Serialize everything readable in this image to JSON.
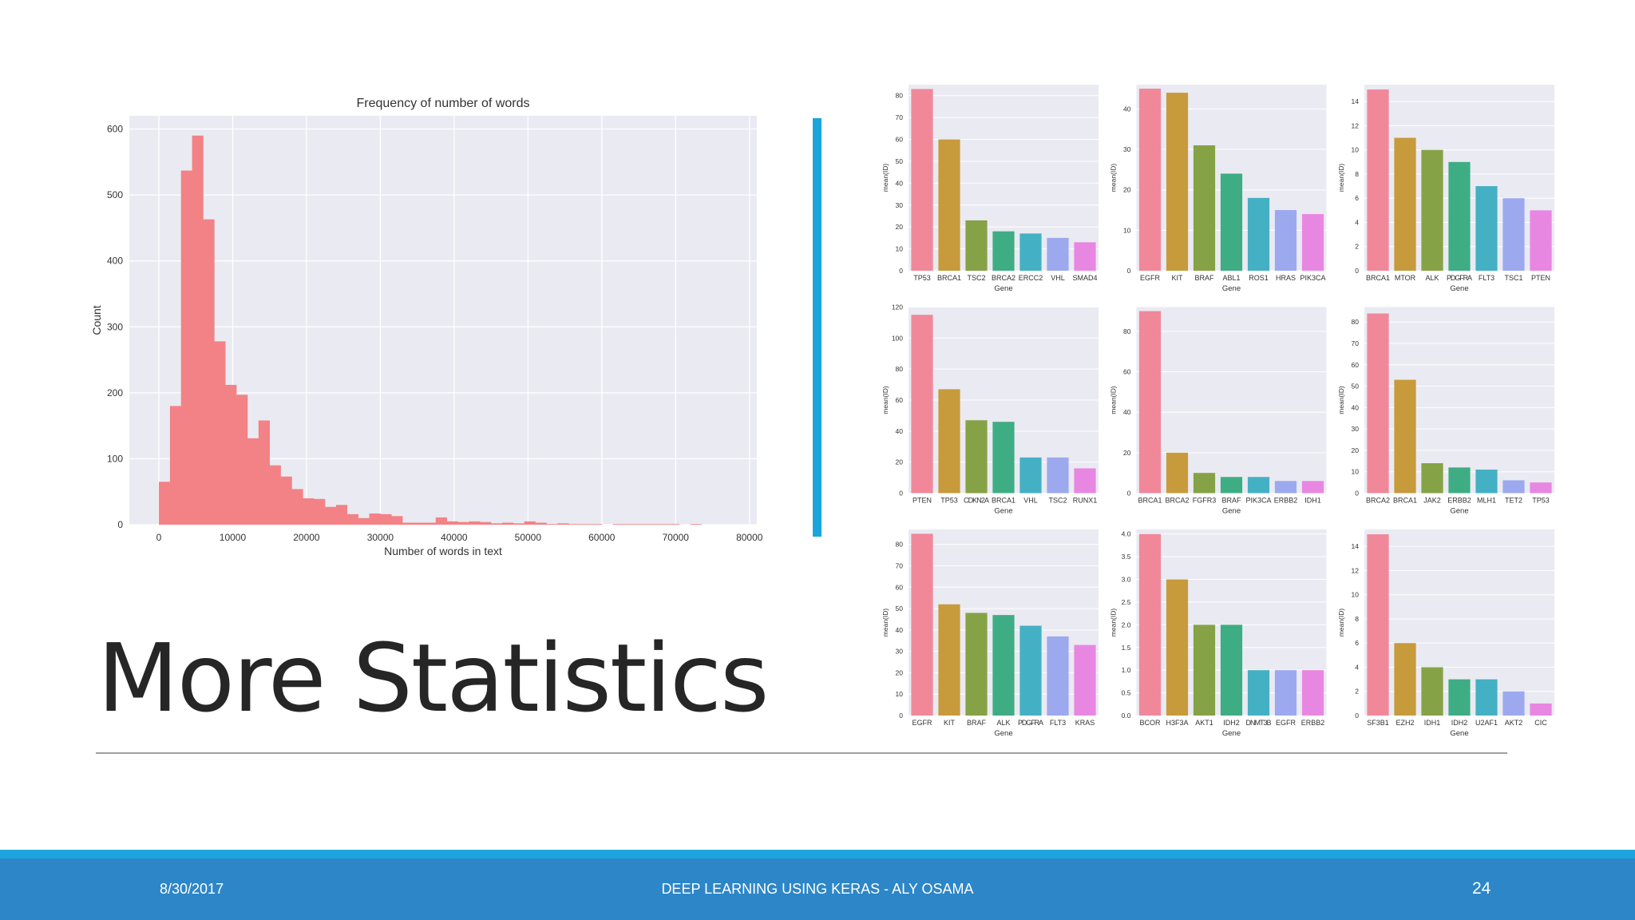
{
  "slide": {
    "title": "More Statistics",
    "footer": {
      "date": "8/30/2017",
      "center_text": "DEEP LEARNING USING KERAS - ALY OSAMA",
      "page_number": "24"
    }
  },
  "colors": {
    "accent": "#1aa6dc",
    "footer_bg": "#2c86c7",
    "hist_bar": "#f28286",
    "plot_bg": "#eaeaf2",
    "bar_palette": [
      "#f0889a",
      "#c79a3c",
      "#86a246",
      "#3fad84",
      "#44b0c4",
      "#9da9ee",
      "#e887e2"
    ]
  },
  "chart_data": [
    {
      "type": "bar",
      "chart": "histogram",
      "title": "Frequency of number of words",
      "xlabel": "Number of words in text",
      "ylabel": "Count",
      "xlim": [
        -4000,
        81000
      ],
      "ylim": [
        0,
        620
      ],
      "x_ticks": [
        "0",
        "10000",
        "20000",
        "30000",
        "40000",
        "50000",
        "60000",
        "70000",
        "80000"
      ],
      "y_ticks": [
        "0",
        "100",
        "200",
        "300",
        "400",
        "500",
        "600"
      ],
      "grid": true,
      "bin_width": 1500,
      "bin_start": 0,
      "counts": [
        65,
        180,
        537,
        590,
        463,
        278,
        212,
        197,
        131,
        158,
        90,
        73,
        54,
        40,
        39,
        27,
        30,
        16,
        10,
        17,
        16,
        13,
        3,
        3,
        3,
        11,
        5,
        4,
        5,
        4,
        2,
        3,
        2,
        5,
        3,
        1,
        2,
        1,
        1,
        1,
        0,
        1,
        1,
        1,
        1,
        1,
        1,
        0,
        1,
        0,
        0,
        0
      ]
    },
    {
      "type": "bar",
      "xlabel": "Gene",
      "ylabel": "mean(ID)",
      "ylim": [
        0,
        85
      ],
      "y_ticks": [
        0,
        10,
        20,
        30,
        40,
        50,
        60,
        70,
        80
      ],
      "categories": [
        "TP53",
        "BRCA1",
        "TSC2",
        "BRCA2",
        "ERCC2",
        "VHL",
        "SMAD4"
      ],
      "values": [
        83,
        60,
        23,
        18,
        17,
        15,
        13
      ]
    },
    {
      "type": "bar",
      "xlabel": "Gene",
      "ylabel": "mean(ID)",
      "ylim": [
        0,
        46
      ],
      "y_ticks": [
        0,
        10,
        20,
        30,
        40
      ],
      "categories": [
        "EGFR",
        "KIT",
        "BRAF",
        "ABL1",
        "ROS1",
        "HRAS",
        "PIK3CA"
      ],
      "values": [
        45,
        44,
        31,
        24,
        18,
        15,
        14
      ]
    },
    {
      "type": "bar",
      "xlabel": "Gene",
      "ylabel": "mean(ID)",
      "ylim": [
        0,
        15.4
      ],
      "y_ticks": [
        0,
        2,
        4,
        6,
        8,
        10,
        12,
        14
      ],
      "categories": [
        "BRCA1",
        "MTOR",
        "ALK",
        "PDGFRA",
        "FLT3",
        "TSC1",
        "PTEN"
      ],
      "values": [
        15,
        11,
        10,
        9,
        7,
        6,
        5
      ]
    },
    {
      "type": "bar",
      "xlabel": "Gene",
      "ylabel": "mean(ID)",
      "ylim": [
        0,
        120
      ],
      "y_ticks": [
        0,
        20,
        40,
        60,
        80,
        100,
        120
      ],
      "categories": [
        "PTEN",
        "TP53",
        "CDKN2A",
        "BRCA1",
        "VHL",
        "TSC2",
        "RUNX1"
      ],
      "values": [
        115,
        67,
        47,
        46,
        23,
        23,
        16
      ]
    },
    {
      "type": "bar",
      "xlabel": "Gene",
      "ylabel": "mean(ID)",
      "ylim": [
        0,
        92
      ],
      "y_ticks": [
        0,
        20,
        40,
        60,
        80
      ],
      "categories": [
        "BRCA1",
        "BRCA2",
        "FGFR3",
        "BRAF",
        "PIK3CA",
        "ERBB2",
        "IDH1"
      ],
      "values": [
        90,
        20,
        10,
        8,
        8,
        6,
        6
      ]
    },
    {
      "type": "bar",
      "xlabel": "Gene",
      "ylabel": "mean(ID)",
      "ylim": [
        0,
        87
      ],
      "y_ticks": [
        0,
        10,
        20,
        30,
        40,
        50,
        60,
        70,
        80
      ],
      "categories": [
        "BRCA2",
        "BRCA1",
        "JAK2",
        "ERBB2",
        "MLH1",
        "TET2",
        "TP53"
      ],
      "values": [
        84,
        53,
        14,
        12,
        11,
        6,
        5
      ]
    },
    {
      "type": "bar",
      "xlabel": "Gene",
      "ylabel": "mean(ID)",
      "ylim": [
        0,
        87
      ],
      "y_ticks": [
        0,
        10,
        20,
        30,
        40,
        50,
        60,
        70,
        80
      ],
      "categories": [
        "EGFR",
        "KIT",
        "BRAF",
        "ALK",
        "PDGFRA",
        "FLT3",
        "KRAS"
      ],
      "values": [
        85,
        52,
        48,
        47,
        42,
        37,
        33
      ]
    },
    {
      "type": "bar",
      "xlabel": "Gene",
      "ylabel": "mean(ID)",
      "ylim": [
        0,
        4.1
      ],
      "y_ticks": [
        "0.0",
        "0.5",
        "1.0",
        "1.5",
        "2.0",
        "2.5",
        "3.0",
        "3.5",
        "4.0"
      ],
      "categories": [
        "BCOR",
        "H3F3A",
        "AKT1",
        "IDH2",
        "DNMT3B",
        "EGFR",
        "ERBB2"
      ],
      "values": [
        4,
        3,
        2,
        2,
        1,
        1,
        1
      ]
    },
    {
      "type": "bar",
      "xlabel": "Gene",
      "ylabel": "mean(ID)",
      "ylim": [
        0,
        15.4
      ],
      "y_ticks": [
        0,
        2,
        4,
        6,
        8,
        10,
        12,
        14
      ],
      "categories": [
        "SF3B1",
        "EZH2",
        "IDH1",
        "IDH2",
        "U2AF1",
        "AKT2",
        "CIC"
      ],
      "values": [
        15,
        6,
        4,
        3,
        3,
        2,
        1
      ]
    }
  ]
}
